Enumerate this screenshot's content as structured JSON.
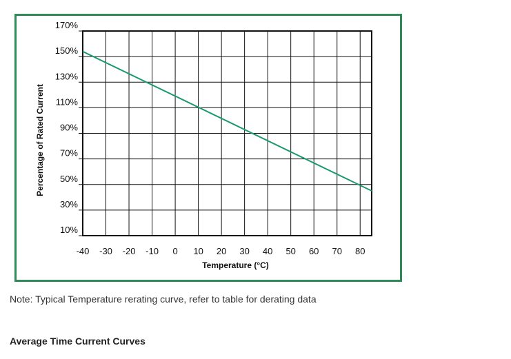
{
  "chart_data": {
    "type": "line",
    "title": "",
    "xlabel": "Temperature (°C)",
    "ylabel": "Percentage of Rated Current",
    "xlim": [
      -40,
      85
    ],
    "ylim": [
      10,
      170
    ],
    "xticks": [
      -40,
      -30,
      -20,
      -10,
      0,
      10,
      20,
      30,
      40,
      50,
      60,
      70,
      80
    ],
    "xtick_labels": [
      "-40",
      "-30",
      "-20",
      "-10",
      "0",
      "10",
      "20",
      "30",
      "40",
      "50",
      "60",
      "70",
      "80"
    ],
    "yticks": [
      10,
      30,
      50,
      70,
      90,
      110,
      130,
      150,
      170
    ],
    "ytick_labels": [
      "10%",
      "30%",
      "50%",
      "70%",
      "90%",
      "110%",
      "130%",
      "150%",
      "170%"
    ],
    "grid": true,
    "line_color": "#1a9a6a",
    "series": [
      {
        "x": [
          -40,
          85
        ],
        "y": [
          154,
          45
        ]
      }
    ]
  },
  "note": "Note: Typical Temperature rerating curve, refer to table for derating data",
  "section_heading": "Average Time Current Curves"
}
